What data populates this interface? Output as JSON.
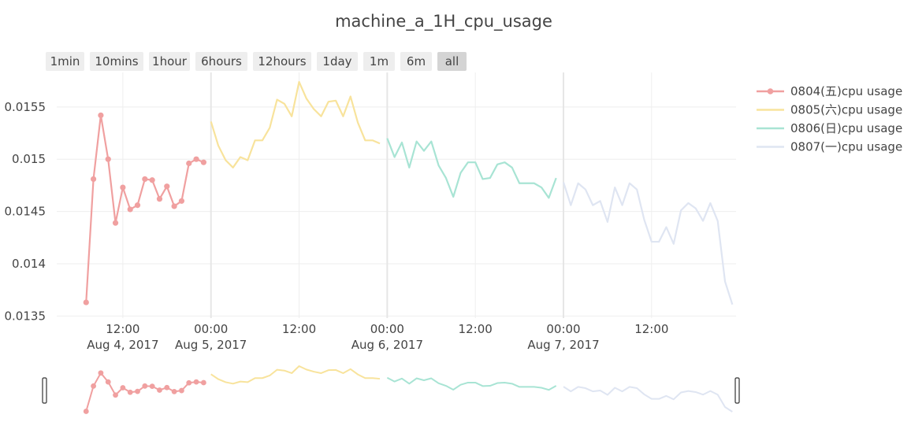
{
  "chart_data": {
    "type": "line",
    "title": "machine_a_1H_cpu_usage",
    "range_selector": {
      "buttons": [
        "1min",
        "10mins",
        "1hour",
        "6hours",
        "12hours",
        "1day",
        "1m",
        "6m",
        "all"
      ],
      "active": "all"
    },
    "x_ticks": [
      {
        "t": "2017-08-04 12:00",
        "time": "12:00",
        "date": "Aug 4, 2017"
      },
      {
        "t": "2017-08-05 00:00",
        "time": "00:00",
        "date": "Aug 5, 2017"
      },
      {
        "t": "2017-08-05 12:00",
        "time": "12:00",
        "date": ""
      },
      {
        "t": "2017-08-06 00:00",
        "time": "00:00",
        "date": "Aug 6, 2017"
      },
      {
        "t": "2017-08-06 12:00",
        "time": "12:00",
        "date": ""
      },
      {
        "t": "2017-08-07 00:00",
        "time": "00:00",
        "date": "Aug 7, 2017"
      },
      {
        "t": "2017-08-07 12:00",
        "time": "12:00",
        "date": ""
      }
    ],
    "xlim": [
      "2017-08-04 03:00",
      "2017-08-07 23:30"
    ],
    "y_ticks": [
      0.0135,
      0.014,
      0.0145,
      0.015,
      0.0155
    ],
    "y_tick_labels": [
      "0.0135",
      "0.014",
      "0.0145",
      "0.015",
      "0.0155"
    ],
    "ylim": [
      0.01348,
      0.01583
    ],
    "legend_position": "top-right",
    "series": [
      {
        "name": "0804(五)cpu usage",
        "color": "#f0a0a0",
        "markers": true,
        "start": "2017-08-04 07:00",
        "step_hours": 1,
        "values": [
          0.01363,
          0.01481,
          0.01542,
          0.015,
          0.01439,
          0.01473,
          0.01452,
          0.01456,
          0.01481,
          0.0148,
          0.01462,
          0.01474,
          0.01455,
          0.0146,
          0.01496,
          0.015,
          0.01497
        ]
      },
      {
        "name": "0805(六)cpu usage",
        "color": "#f8e39c",
        "markers": false,
        "start": "2017-08-05 00:00",
        "step_hours": 1,
        "values": [
          0.01536,
          0.01513,
          0.01499,
          0.01492,
          0.01502,
          0.01499,
          0.01518,
          0.01518,
          0.0153,
          0.01557,
          0.01553,
          0.01541,
          0.01574,
          0.01558,
          0.01548,
          0.01541,
          0.01555,
          0.01556,
          0.01541,
          0.0156,
          0.01535,
          0.01518,
          0.01518,
          0.01515
        ]
      },
      {
        "name": "0806(日)cpu usage",
        "color": "#a8e4d4",
        "markers": false,
        "start": "2017-08-06 00:00",
        "step_hours": 1,
        "values": [
          0.0152,
          0.01502,
          0.01516,
          0.01492,
          0.01517,
          0.01508,
          0.01517,
          0.01494,
          0.01482,
          0.01464,
          0.01487,
          0.01497,
          0.01497,
          0.01481,
          0.01482,
          0.01495,
          0.01497,
          0.01492,
          0.01477,
          0.01477,
          0.01477,
          0.01473,
          0.01463,
          0.01482
        ]
      },
      {
        "name": "0807(一)cpu usage",
        "color": "#dfe5f2",
        "markers": false,
        "start": "2017-08-07 00:00",
        "step_hours": 1,
        "values": [
          0.01478,
          0.01456,
          0.01477,
          0.01471,
          0.01456,
          0.0146,
          0.0144,
          0.01473,
          0.01456,
          0.01477,
          0.01471,
          0.01442,
          0.01421,
          0.01421,
          0.01435,
          0.01419,
          0.01451,
          0.01458,
          0.01453,
          0.01441,
          0.01458,
          0.01441,
          0.01383,
          0.01361
        ]
      }
    ],
    "range_slider": true
  }
}
